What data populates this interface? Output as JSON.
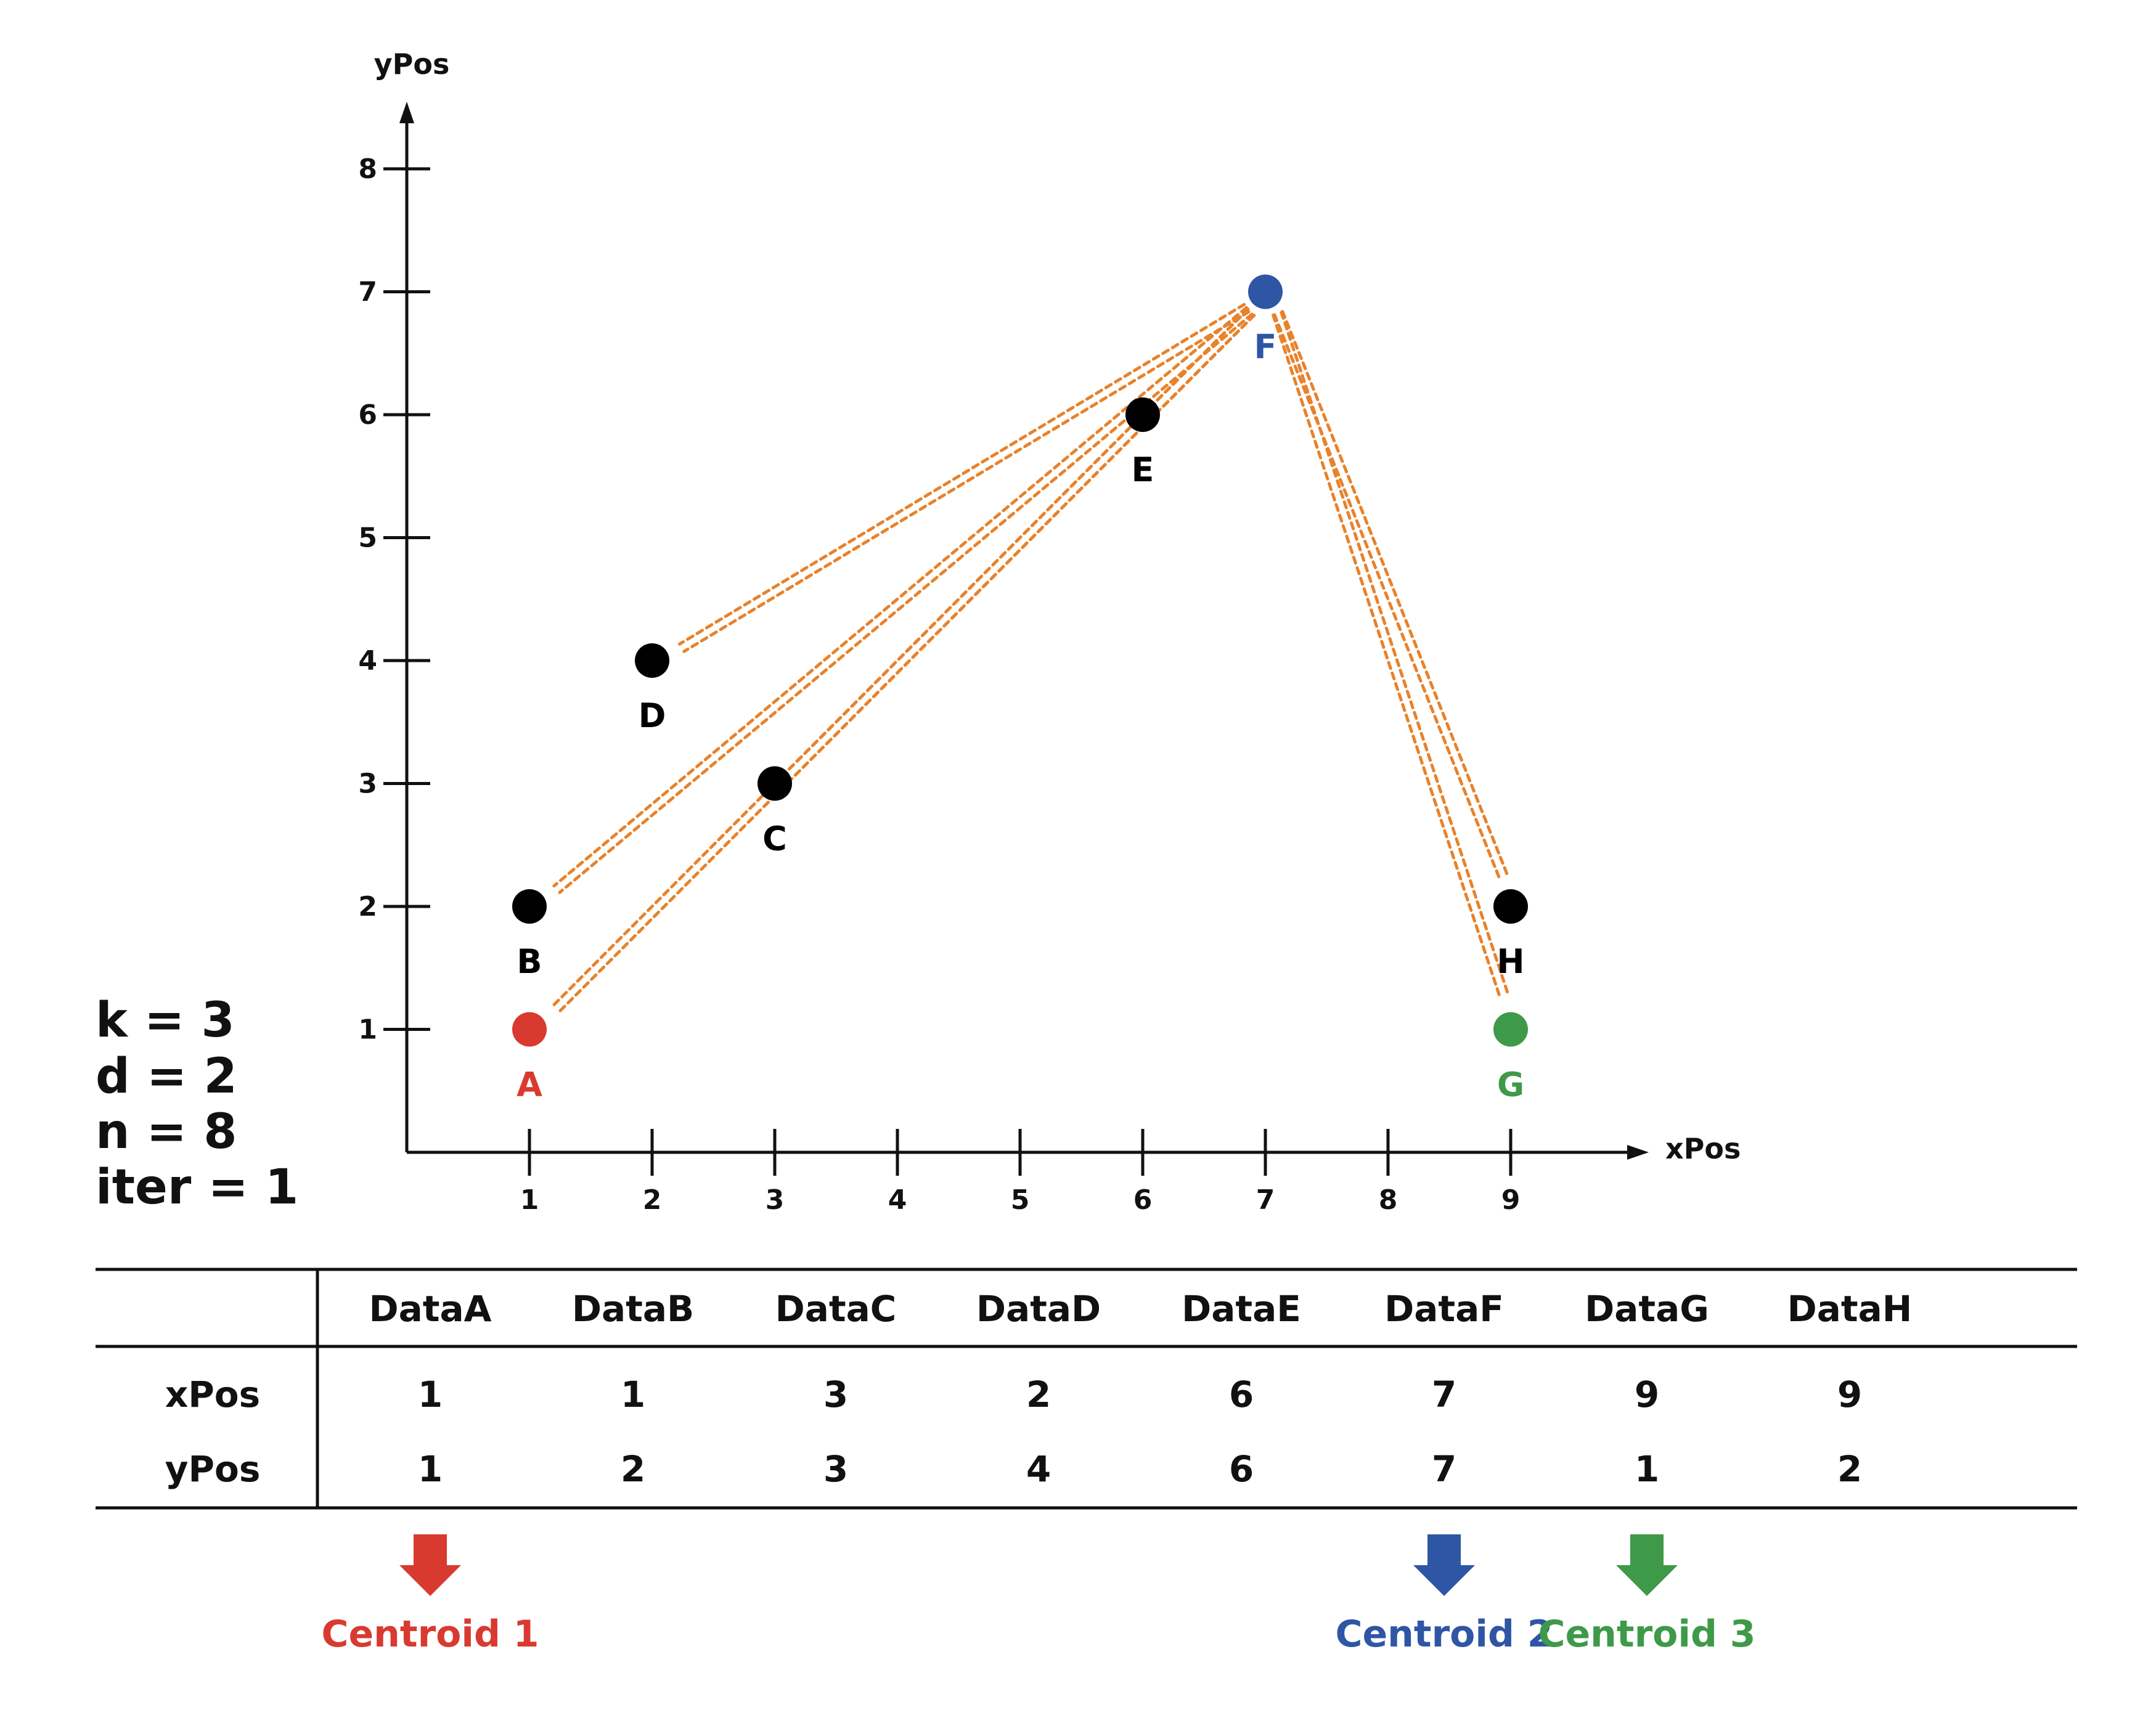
{
  "axes": {
    "x_title": "xPos",
    "y_title": "yPos",
    "x_ticks": [
      "1",
      "2",
      "3",
      "4",
      "5",
      "6",
      "7",
      "8",
      "9"
    ],
    "y_ticks": [
      "1",
      "2",
      "3",
      "4",
      "5",
      "6",
      "7",
      "8"
    ],
    "xlim": [
      0,
      9.85
    ],
    "ylim": [
      0,
      8.6
    ]
  },
  "colors": {
    "point": "#000000",
    "centroid_1": "#d93a2f",
    "centroid_2": "#2f55a5",
    "centroid_3": "#3e9a48",
    "distance_line": "#e8822b",
    "axis": "#111111"
  },
  "points": [
    {
      "id": "A",
      "label": "A",
      "x": 1,
      "y": 1,
      "color": "#d93a2f",
      "role": "centroid_1"
    },
    {
      "id": "B",
      "label": "B",
      "x": 1,
      "y": 2,
      "color": "#000000"
    },
    {
      "id": "C",
      "label": "C",
      "x": 3,
      "y": 3,
      "color": "#000000"
    },
    {
      "id": "D",
      "label": "D",
      "x": 2,
      "y": 4,
      "color": "#000000"
    },
    {
      "id": "E",
      "label": "E",
      "x": 6,
      "y": 6,
      "color": "#000000"
    },
    {
      "id": "F",
      "label": "F",
      "x": 7,
      "y": 7,
      "color": "#2f55a5",
      "role": "centroid_2"
    },
    {
      "id": "G",
      "label": "G",
      "x": 9,
      "y": 1,
      "color": "#3e9a48",
      "role": "centroid_3"
    },
    {
      "id": "H",
      "label": "H",
      "x": 9,
      "y": 2,
      "color": "#000000"
    }
  ],
  "distance_lines": {
    "from": "F",
    "to": [
      "A",
      "B",
      "C",
      "D",
      "E",
      "G",
      "H"
    ],
    "style": "dotted"
  },
  "stats": [
    "k = 3",
    "d = 2",
    "n = 8",
    "iter = 1"
  ],
  "table": {
    "columns": [
      "DataA",
      "DataB",
      "DataC",
      "DataD",
      "DataE",
      "DataF",
      "DataG",
      "DataH"
    ],
    "rows": [
      {
        "label": "xPos",
        "values": [
          "1",
          "1",
          "3",
          "2",
          "6",
          "7",
          "9",
          "9"
        ]
      },
      {
        "label": "yPos",
        "values": [
          "1",
          "2",
          "3",
          "4",
          "6",
          "7",
          "1",
          "2"
        ]
      }
    ]
  },
  "centroids": [
    {
      "label": "Centroid 1",
      "column": "DataA",
      "color": "#d93a2f"
    },
    {
      "label": "Centroid 2",
      "column": "DataF",
      "color": "#2f55a5"
    },
    {
      "label": "Centroid 3",
      "column": "DataG",
      "color": "#3e9a48"
    }
  ]
}
